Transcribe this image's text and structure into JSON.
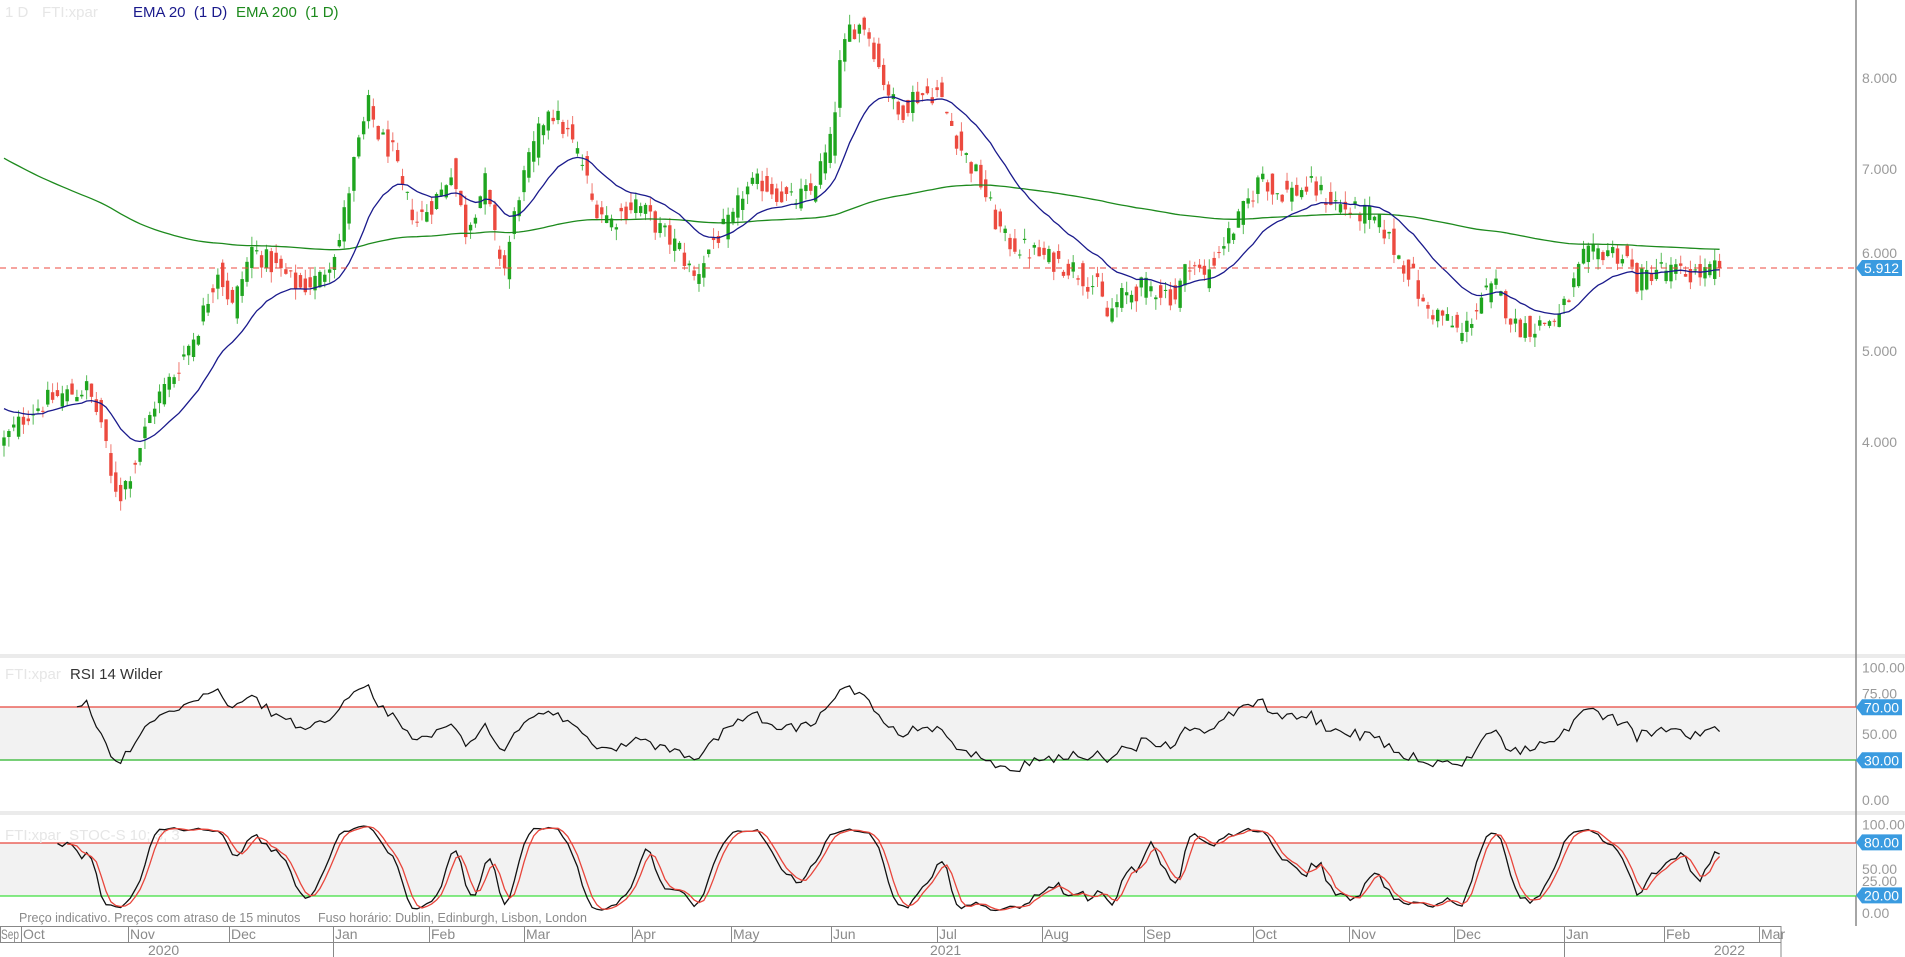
{
  "chart_data": {
    "type": "candlestick",
    "symbol": "FTI:xpar",
    "interval": "1 D",
    "legend": {
      "interval": "1 D",
      "symbol": "FTI:xpar",
      "ema20": "EMA 20  (1 D)",
      "ema200": "EMA 200  (1 D)"
    },
    "colors": {
      "up": "#1fa51f",
      "down": "#ec4a3f",
      "ema20": "#1a1a8c",
      "ema200": "#1d8a1d",
      "tag": "#3a9be0"
    },
    "price_axis": {
      "ticks": [
        "8.000",
        "7.000",
        "6.000",
        "5.000",
        "4.000"
      ],
      "tick_values": [
        8,
        7,
        6,
        5,
        4
      ],
      "ylim": [
        3.3,
        8.9
      ]
    },
    "last_price": 5.912,
    "last_price_label": "5.912",
    "close_path_note_days": "trading-day index from start of Sep 2020",
    "close_path": [
      [
        0,
        4.01
      ],
      [
        5,
        4.33
      ],
      [
        10,
        4.48
      ],
      [
        17,
        4.59
      ],
      [
        20,
        4.22
      ],
      [
        22,
        3.59
      ],
      [
        24,
        3.43
      ],
      [
        27,
        3.8
      ],
      [
        31,
        4.43
      ],
      [
        35,
        4.75
      ],
      [
        40,
        5.27
      ],
      [
        44,
        5.91
      ],
      [
        47,
        5.48
      ],
      [
        51,
        6.12
      ],
      [
        56,
        5.91
      ],
      [
        61,
        5.69
      ],
      [
        65,
        5.8
      ],
      [
        69,
        6.22
      ],
      [
        72,
        7.06
      ],
      [
        75,
        7.69
      ],
      [
        77,
        7.38
      ],
      [
        80,
        7.17
      ],
      [
        82,
        6.75
      ],
      [
        85,
        6.43
      ],
      [
        90,
        6.75
      ],
      [
        92,
        7.01
      ],
      [
        95,
        6.33
      ],
      [
        99,
        6.85
      ],
      [
        101,
        6.22
      ],
      [
        103,
        5.91
      ],
      [
        106,
        6.75
      ],
      [
        110,
        7.38
      ],
      [
        112,
        7.69
      ],
      [
        116,
        7.38
      ],
      [
        119,
        7.06
      ],
      [
        121,
        6.64
      ],
      [
        125,
        6.43
      ],
      [
        130,
        6.64
      ],
      [
        135,
        6.33
      ],
      [
        139,
        6.12
      ],
      [
        142,
        5.8
      ],
      [
        146,
        6.22
      ],
      [
        150,
        6.43
      ],
      [
        152,
        6.75
      ],
      [
        156,
        6.85
      ],
      [
        162,
        6.64
      ],
      [
        166,
        6.75
      ],
      [
        170,
        7.27
      ],
      [
        172,
        8.12
      ],
      [
        174,
        8.54
      ],
      [
        177,
        8.59
      ],
      [
        179,
        8.33
      ],
      [
        180,
        8.12
      ],
      [
        184,
        7.59
      ],
      [
        187,
        7.8
      ],
      [
        192,
        7.85
      ],
      [
        195,
        7.48
      ],
      [
        197,
        7.22
      ],
      [
        201,
        6.85
      ],
      [
        204,
        6.43
      ],
      [
        206,
        6.22
      ],
      [
        210,
        6.12
      ],
      [
        215,
        6.01
      ],
      [
        220,
        5.91
      ],
      [
        225,
        5.69
      ],
      [
        227,
        5.38
      ],
      [
        230,
        5.59
      ],
      [
        234,
        5.69
      ],
      [
        237,
        5.69
      ],
      [
        241,
        5.59
      ],
      [
        244,
        6.01
      ],
      [
        247,
        5.8
      ],
      [
        250,
        6.12
      ],
      [
        254,
        6.43
      ],
      [
        259,
        6.96
      ],
      [
        261,
        6.75
      ],
      [
        265,
        6.75
      ],
      [
        269,
        6.8
      ],
      [
        272,
        6.69
      ],
      [
        277,
        6.54
      ],
      [
        281,
        6.48
      ],
      [
        284,
        6.33
      ],
      [
        286,
        6.12
      ],
      [
        290,
        5.8
      ],
      [
        292,
        5.48
      ],
      [
        296,
        5.38
      ],
      [
        300,
        5.17
      ],
      [
        304,
        5.59
      ],
      [
        307,
        5.69
      ],
      [
        311,
        5.27
      ],
      [
        315,
        5.27
      ],
      [
        320,
        5.38
      ],
      [
        322,
        5.59
      ],
      [
        325,
        6.01
      ],
      [
        330,
        6.12
      ],
      [
        334,
        6.01
      ],
      [
        336,
        5.75
      ],
      [
        340,
        5.91
      ],
      [
        345,
        5.85
      ],
      [
        350,
        5.85
      ],
      [
        353,
        5.912
      ]
    ],
    "ema200_start": 7.15,
    "ema20_start": 4.4,
    "rsi": {
      "label_symbol": "FTI:xpar",
      "label": "RSI 14 Wilder",
      "period": 14,
      "ticks": [
        "100.00",
        "75.00",
        "50.00",
        "0.00"
      ],
      "tick_values": [
        100,
        75,
        50,
        0
      ],
      "upper": 70,
      "lower": 30,
      "upper_label": "70.00",
      "lower_label": "30.00",
      "ylim": [
        0,
        100
      ]
    },
    "stoch": {
      "label": "FTI:xpar  STOC-S 10; 3; 3",
      "k": 10,
      "smooth": 3,
      "d": 3,
      "ticks": [
        "100.00",
        "50.00",
        "25.00",
        "0.00"
      ],
      "tick_values": [
        100,
        50,
        25,
        0
      ],
      "upper": 80,
      "lower": 20,
      "upper_label": "80.00",
      "lower_label": "20.00",
      "ylim": [
        0,
        100
      ]
    },
    "x_axis": {
      "months": [
        "Sep",
        "Oct",
        "Nov",
        "Dec",
        "Jan",
        "Feb",
        "Mar",
        "Apr",
        "May",
        "Jun",
        "Jul",
        "Aug",
        "Sep",
        "Oct",
        "Nov",
        "Dec",
        "Jan",
        "Feb",
        "Mar"
      ],
      "years": [
        "2020",
        "2021",
        "2022"
      ]
    }
  },
  "footer": {
    "disclaimer": "Preço indicativo. Preços com atraso de 15 minutos",
    "timezone": "Fuso horário: Dublin, Edinburgh, Lisbon, London"
  }
}
